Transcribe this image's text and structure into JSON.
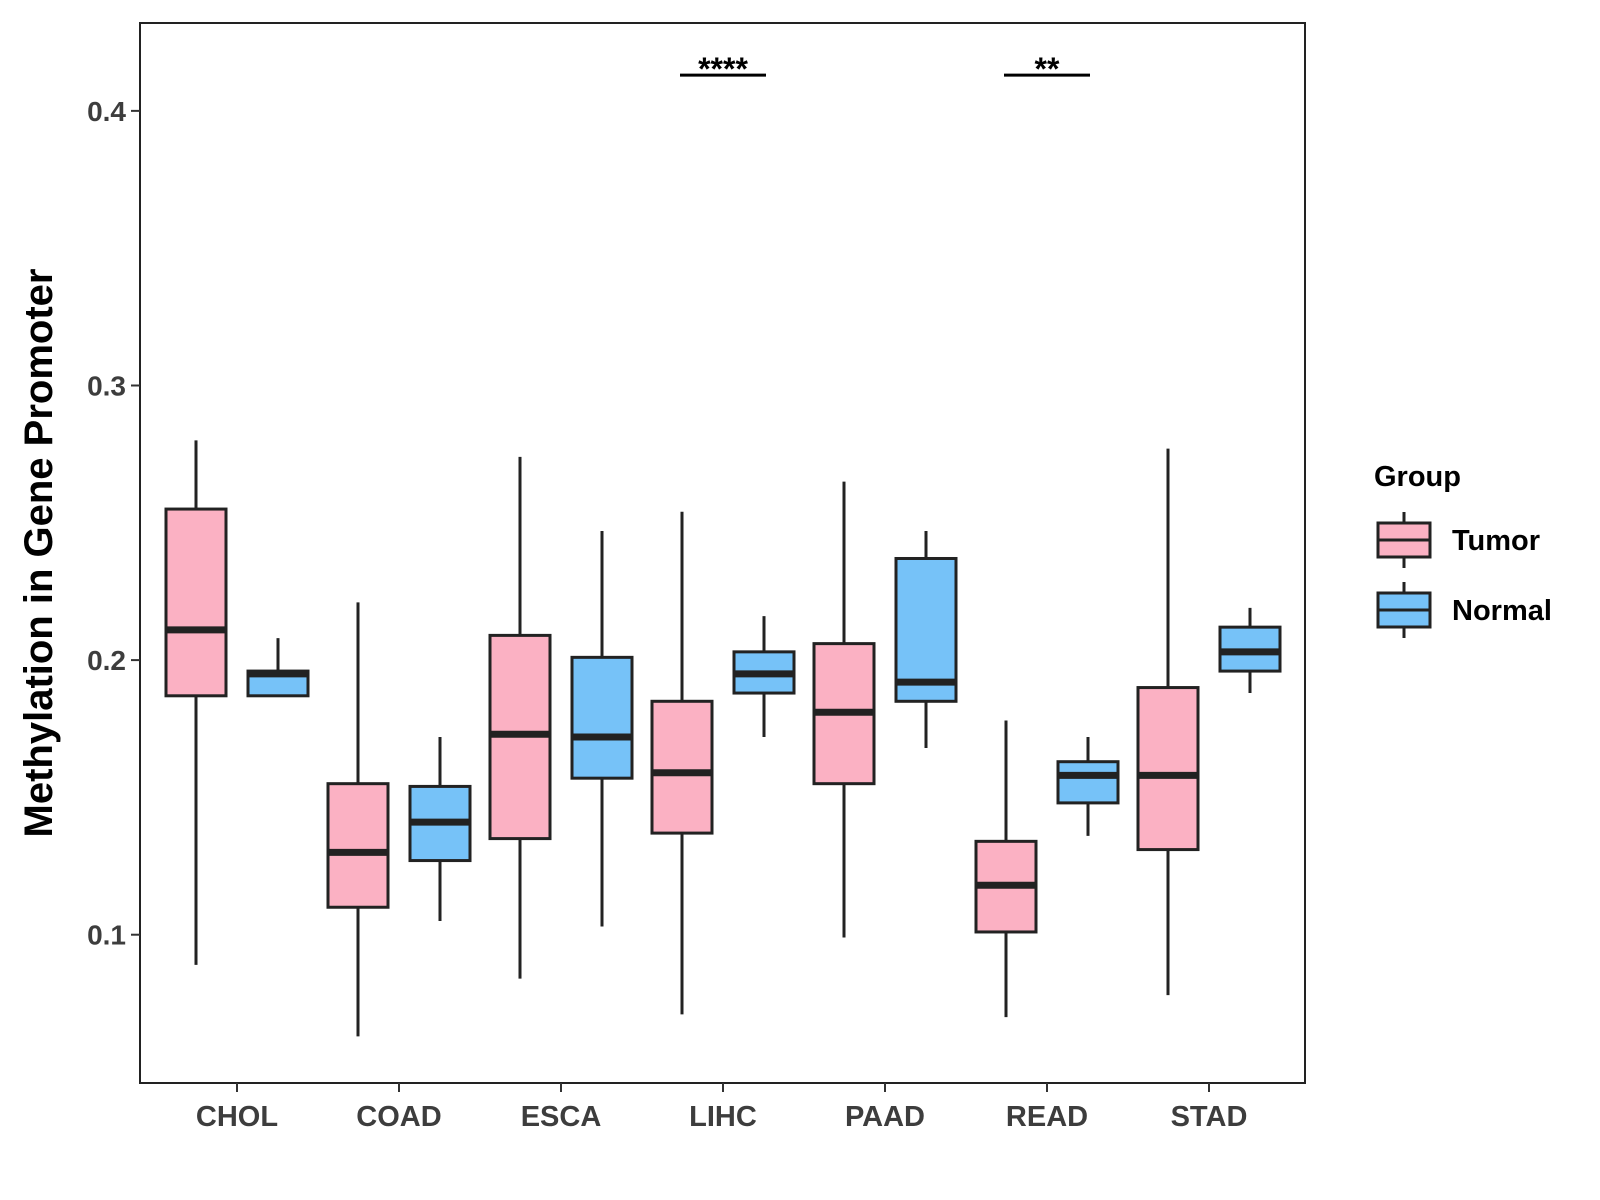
{
  "chart_data": {
    "type": "boxplot",
    "title": "",
    "xlabel": "",
    "ylabel": "Methylation in Gene Promoter",
    "ylim": [
      0.046,
      0.432
    ],
    "yticks": [
      0.1,
      0.2,
      0.3,
      0.4
    ],
    "ytick_labels": [
      "0.1",
      "0.2",
      "0.3",
      "0.4"
    ],
    "categories": [
      "CHOL",
      "COAD",
      "ESCA",
      "LIHC",
      "PAAD",
      "READ",
      "STAD"
    ],
    "legend": {
      "title": "Group",
      "position": "right",
      "entries": [
        {
          "name": "Tumor",
          "color": "#fbb1c3"
        },
        {
          "name": "Normal",
          "color": "#76c2f8"
        }
      ]
    },
    "series": [
      {
        "name": "Tumor",
        "color": "#fbb1c3",
        "boxes": [
          {
            "whisker_low": 0.089,
            "q1": 0.187,
            "median": 0.211,
            "q3": 0.255,
            "whisker_high": 0.28
          },
          {
            "whisker_low": 0.063,
            "q1": 0.11,
            "median": 0.13,
            "q3": 0.155,
            "whisker_high": 0.221
          },
          {
            "whisker_low": 0.084,
            "q1": 0.135,
            "median": 0.173,
            "q3": 0.209,
            "whisker_high": 0.274
          },
          {
            "whisker_low": 0.071,
            "q1": 0.137,
            "median": 0.159,
            "q3": 0.185,
            "whisker_high": 0.254
          },
          {
            "whisker_low": 0.099,
            "q1": 0.155,
            "median": 0.181,
            "q3": 0.206,
            "whisker_high": 0.265
          },
          {
            "whisker_low": 0.07,
            "q1": 0.101,
            "median": 0.118,
            "q3": 0.134,
            "whisker_high": 0.178
          },
          {
            "whisker_low": 0.078,
            "q1": 0.131,
            "median": 0.158,
            "q3": 0.19,
            "whisker_high": 0.277
          }
        ]
      },
      {
        "name": "Normal",
        "color": "#76c2f8",
        "boxes": [
          {
            "whisker_low": 0.187,
            "q1": 0.187,
            "median": 0.195,
            "q3": 0.196,
            "whisker_high": 0.208
          },
          {
            "whisker_low": 0.105,
            "q1": 0.127,
            "median": 0.141,
            "q3": 0.154,
            "whisker_high": 0.172
          },
          {
            "whisker_low": 0.103,
            "q1": 0.157,
            "median": 0.172,
            "q3": 0.201,
            "whisker_high": 0.247
          },
          {
            "whisker_low": 0.172,
            "q1": 0.188,
            "median": 0.195,
            "q3": 0.203,
            "whisker_high": 0.216
          },
          {
            "whisker_low": 0.168,
            "q1": 0.185,
            "median": 0.192,
            "q3": 0.237,
            "whisker_high": 0.247
          },
          {
            "whisker_low": 0.136,
            "q1": 0.148,
            "median": 0.158,
            "q3": 0.163,
            "whisker_high": 0.172
          },
          {
            "whisker_low": 0.188,
            "q1": 0.196,
            "median": 0.203,
            "q3": 0.212,
            "whisker_high": 0.219
          }
        ]
      }
    ],
    "annotations": [
      {
        "category": "LIHC",
        "label": "****",
        "y": 0.413
      },
      {
        "category": "READ",
        "label": "**",
        "y": 0.413
      }
    ],
    "grid": false
  }
}
